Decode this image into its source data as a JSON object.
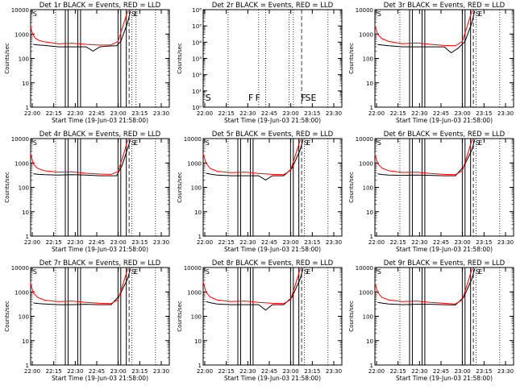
{
  "figure": {
    "xlabel": "Start Time (19-Jun-03 21:58:00)",
    "ylabel": "Counts/sec",
    "x_ticks": [
      "22:00",
      "22:15",
      "22:30",
      "22:45",
      "23:00",
      "23:15",
      "23:30"
    ]
  },
  "chart_data": [
    {
      "type": "line",
      "title": "Det 1r BLACK = Events, RED = LLD",
      "scale": "log",
      "ylim": [
        1,
        10000
      ],
      "xlim_minutes": [
        0,
        100
      ],
      "y_ticks": [
        "1",
        "10",
        "100",
        "1000",
        "10000"
      ],
      "events_marks": [
        [
          2,
          380
        ],
        [
          5,
          360
        ],
        [
          10,
          340
        ],
        [
          20,
          300
        ],
        [
          30,
          300
        ],
        [
          40,
          300
        ],
        [
          45,
          200
        ],
        [
          50,
          300
        ],
        [
          55,
          320
        ],
        [
          62,
          330
        ],
        [
          65,
          500
        ],
        [
          70,
          3000
        ],
        [
          72,
          9000
        ]
      ],
      "lld_marks": [
        [
          0,
          2000
        ],
        [
          1,
          1200
        ],
        [
          3,
          700
        ],
        [
          6,
          550
        ],
        [
          10,
          480
        ],
        [
          20,
          400
        ],
        [
          30,
          420
        ],
        [
          40,
          380
        ],
        [
          50,
          350
        ],
        [
          58,
          360
        ],
        [
          63,
          500
        ],
        [
          67,
          2500
        ],
        [
          70,
          9000
        ]
      ],
      "vlines_solid": [
        25,
        27,
        34,
        36,
        63,
        65,
        69
      ],
      "vlines_dotted": [
        18,
        73,
        76,
        90
      ],
      "vlines_dashed": [
        71
      ],
      "annotations": [
        {
          "text": "S",
          "x": 1
        },
        {
          "text": "S",
          "x": 72
        },
        {
          "text": "E",
          "x": 74
        }
      ]
    },
    {
      "type": "line",
      "title": "Det 2r BLACK = Events, RED = LLD",
      "scale": "log",
      "ylim": [
        1,
        1000000
      ],
      "xlim_minutes": [
        0,
        100
      ],
      "y_ticks": [
        "10⁰",
        "10¹",
        "10²",
        "10³",
        "10⁴",
        "10⁵",
        "10⁶"
      ],
      "events_marks": [],
      "lld_marks": [],
      "vlines_solid": [],
      "vlines_dotted": [
        18,
        40,
        45,
        62,
        65,
        90
      ],
      "vlines_dashed": [
        71
      ],
      "annotations": [
        {
          "text": "S",
          "x": 1
        },
        {
          "text": "F",
          "x": 32
        },
        {
          "text": "F",
          "x": 37
        },
        {
          "text": "F",
          "x": 70
        },
        {
          "text": "S",
          "x": 73
        },
        {
          "text": "E",
          "x": 77
        }
      ]
    },
    {
      "type": "line",
      "title": "Det 3r BLACK = Events, RED = LLD",
      "scale": "log",
      "ylim": [
        1,
        10000
      ],
      "xlim_minutes": [
        0,
        100
      ],
      "y_ticks": [
        "1",
        "10",
        "100",
        "1000",
        "10000"
      ],
      "events_marks": [
        [
          2,
          370
        ],
        [
          6,
          350
        ],
        [
          10,
          330
        ],
        [
          20,
          300
        ],
        [
          30,
          300
        ],
        [
          40,
          300
        ],
        [
          50,
          300
        ],
        [
          55,
          170
        ],
        [
          60,
          260
        ],
        [
          65,
          500
        ],
        [
          70,
          3000
        ],
        [
          72,
          9000
        ]
      ],
      "lld_marks": [
        [
          0,
          2200
        ],
        [
          2,
          1000
        ],
        [
          5,
          650
        ],
        [
          10,
          500
        ],
        [
          20,
          400
        ],
        [
          30,
          430
        ],
        [
          40,
          380
        ],
        [
          50,
          340
        ],
        [
          58,
          330
        ],
        [
          63,
          500
        ],
        [
          67,
          2500
        ],
        [
          70,
          9000
        ]
      ],
      "vlines_solid": [
        25,
        27,
        34,
        36,
        63,
        65,
        69
      ],
      "vlines_dotted": [
        18,
        73,
        90
      ],
      "vlines_dashed": [
        71
      ],
      "annotations": [
        {
          "text": "S",
          "x": 1
        },
        {
          "text": "S",
          "x": 72
        },
        {
          "text": "E",
          "x": 74
        }
      ]
    },
    {
      "type": "line",
      "title": "Det 4r BLACK = Events, RED = LLD",
      "scale": "log",
      "ylim": [
        1,
        10000
      ],
      "xlim_minutes": [
        0,
        100
      ],
      "y_ticks": [
        "1",
        "10",
        "100",
        "1000",
        "10000"
      ],
      "events_marks": [
        [
          2,
          360
        ],
        [
          6,
          340
        ],
        [
          10,
          330
        ],
        [
          20,
          320
        ],
        [
          30,
          330
        ],
        [
          40,
          320
        ],
        [
          50,
          300
        ],
        [
          55,
          300
        ],
        [
          62,
          300
        ],
        [
          66,
          800
        ],
        [
          70,
          4000
        ],
        [
          72,
          9000
        ]
      ],
      "lld_marks": [
        [
          0,
          2500
        ],
        [
          2,
          900
        ],
        [
          5,
          600
        ],
        [
          10,
          480
        ],
        [
          20,
          420
        ],
        [
          30,
          430
        ],
        [
          40,
          380
        ],
        [
          50,
          350
        ],
        [
          58,
          340
        ],
        [
          63,
          450
        ],
        [
          67,
          2200
        ],
        [
          70,
          9000
        ]
      ],
      "vlines_solid": [
        25,
        27,
        34,
        36,
        63,
        65,
        69
      ],
      "vlines_dotted": [
        18,
        73,
        90
      ],
      "vlines_dashed": [
        71
      ],
      "annotations": [
        {
          "text": "S",
          "x": 1
        },
        {
          "text": "S",
          "x": 72
        },
        {
          "text": "E",
          "x": 74
        }
      ]
    },
    {
      "type": "line",
      "title": "Det 5r BLACK = Events, RED = LLD",
      "scale": "log",
      "ylim": [
        1,
        10000
      ],
      "xlim_minutes": [
        0,
        100
      ],
      "y_ticks": [
        "1",
        "10",
        "100",
        "1000",
        "10000"
      ],
      "events_marks": [
        [
          2,
          380
        ],
        [
          6,
          340
        ],
        [
          10,
          320
        ],
        [
          20,
          300
        ],
        [
          30,
          300
        ],
        [
          40,
          300
        ],
        [
          45,
          200
        ],
        [
          50,
          300
        ],
        [
          58,
          300
        ],
        [
          64,
          600
        ],
        [
          70,
          3500
        ],
        [
          72,
          9000
        ]
      ],
      "lld_marks": [
        [
          0,
          2400
        ],
        [
          2,
          1000
        ],
        [
          5,
          600
        ],
        [
          10,
          460
        ],
        [
          20,
          400
        ],
        [
          30,
          420
        ],
        [
          40,
          370
        ],
        [
          50,
          340
        ],
        [
          58,
          330
        ],
        [
          63,
          500
        ],
        [
          67,
          2500
        ],
        [
          70,
          9000
        ]
      ],
      "vlines_solid": [
        25,
        27,
        34,
        36,
        63,
        65,
        69
      ],
      "vlines_dotted": [
        18,
        73,
        90
      ],
      "vlines_dashed": [
        71
      ],
      "annotations": [
        {
          "text": "S",
          "x": 1
        },
        {
          "text": "S",
          "x": 72
        },
        {
          "text": "E",
          "x": 74
        }
      ]
    },
    {
      "type": "line",
      "title": "Det 6r BLACK = Events, RED = LLD",
      "scale": "log",
      "ylim": [
        1,
        10000
      ],
      "xlim_minutes": [
        0,
        100
      ],
      "y_ticks": [
        "1",
        "10",
        "100",
        "1000",
        "10000"
      ],
      "events_marks": [
        [
          2,
          360
        ],
        [
          6,
          330
        ],
        [
          10,
          320
        ],
        [
          20,
          310
        ],
        [
          30,
          320
        ],
        [
          40,
          310
        ],
        [
          50,
          300
        ],
        [
          58,
          300
        ],
        [
          64,
          700
        ],
        [
          70,
          3500
        ],
        [
          72,
          9000
        ]
      ],
      "lld_marks": [
        [
          0,
          2300
        ],
        [
          2,
          950
        ],
        [
          5,
          620
        ],
        [
          10,
          480
        ],
        [
          20,
          410
        ],
        [
          30,
          420
        ],
        [
          40,
          370
        ],
        [
          50,
          340
        ],
        [
          58,
          330
        ],
        [
          63,
          480
        ],
        [
          67,
          2400
        ],
        [
          70,
          9000
        ]
      ],
      "vlines_solid": [
        25,
        27,
        34,
        36,
        63,
        65,
        69
      ],
      "vlines_dotted": [
        18,
        73,
        90
      ],
      "vlines_dashed": [
        71
      ],
      "annotations": [
        {
          "text": "S",
          "x": 1
        },
        {
          "text": "S",
          "x": 72
        },
        {
          "text": "E",
          "x": 74
        }
      ]
    },
    {
      "type": "line",
      "title": "Det 7r BLACK = Events, RED = LLD",
      "scale": "log",
      "ylim": [
        1,
        10000
      ],
      "xlim_minutes": [
        0,
        100
      ],
      "y_ticks": [
        "1",
        "10",
        "100",
        "1000",
        "10000"
      ],
      "events_marks": [
        [
          2,
          350
        ],
        [
          6,
          330
        ],
        [
          10,
          320
        ],
        [
          20,
          300
        ],
        [
          30,
          300
        ],
        [
          40,
          310
        ],
        [
          50,
          300
        ],
        [
          58,
          300
        ],
        [
          64,
          700
        ],
        [
          70,
          3500
        ],
        [
          72,
          9000
        ]
      ],
      "lld_marks": [
        [
          0,
          2200
        ],
        [
          2,
          900
        ],
        [
          5,
          600
        ],
        [
          10,
          460
        ],
        [
          20,
          400
        ],
        [
          30,
          420
        ],
        [
          40,
          370
        ],
        [
          50,
          340
        ],
        [
          58,
          330
        ],
        [
          63,
          480
        ],
        [
          67,
          2400
        ],
        [
          70,
          9000
        ]
      ],
      "vlines_solid": [
        25,
        27,
        34,
        36,
        63,
        65,
        69
      ],
      "vlines_dotted": [
        18,
        73,
        90
      ],
      "vlines_dashed": [
        71
      ],
      "annotations": [
        {
          "text": "S",
          "x": 1
        },
        {
          "text": "S",
          "x": 72
        },
        {
          "text": "E",
          "x": 74
        }
      ]
    },
    {
      "type": "line",
      "title": "Det 8r BLACK = Events, RED = LLD",
      "scale": "log",
      "ylim": [
        1,
        10000
      ],
      "xlim_minutes": [
        0,
        100
      ],
      "y_ticks": [
        "1",
        "10",
        "100",
        "1000",
        "10000"
      ],
      "events_marks": [
        [
          2,
          400
        ],
        [
          6,
          350
        ],
        [
          10,
          320
        ],
        [
          20,
          300
        ],
        [
          30,
          300
        ],
        [
          40,
          300
        ],
        [
          45,
          180
        ],
        [
          50,
          300
        ],
        [
          58,
          300
        ],
        [
          64,
          600
        ],
        [
          70,
          3500
        ],
        [
          72,
          9000
        ]
      ],
      "lld_marks": [
        [
          0,
          2600
        ],
        [
          2,
          1000
        ],
        [
          5,
          620
        ],
        [
          10,
          470
        ],
        [
          20,
          400
        ],
        [
          30,
          420
        ],
        [
          40,
          370
        ],
        [
          50,
          340
        ],
        [
          58,
          330
        ],
        [
          63,
          480
        ],
        [
          67,
          2400
        ],
        [
          70,
          9000
        ]
      ],
      "vlines_solid": [
        25,
        27,
        34,
        36,
        63,
        65,
        69
      ],
      "vlines_dotted": [
        18,
        73,
        90
      ],
      "vlines_dashed": [
        71
      ],
      "annotations": [
        {
          "text": "S",
          "x": 1
        },
        {
          "text": "S",
          "x": 72
        },
        {
          "text": "E",
          "x": 74
        }
      ]
    },
    {
      "type": "line",
      "title": "Det 9r BLACK = Events, RED = LLD",
      "scale": "log",
      "ylim": [
        1,
        10000
      ],
      "xlim_minutes": [
        0,
        100
      ],
      "y_ticks": [
        "1",
        "10",
        "100",
        "1000",
        "10000"
      ],
      "events_marks": [
        [
          2,
          370
        ],
        [
          6,
          340
        ],
        [
          10,
          320
        ],
        [
          20,
          300
        ],
        [
          30,
          310
        ],
        [
          40,
          310
        ],
        [
          50,
          300
        ],
        [
          58,
          290
        ],
        [
          64,
          600
        ],
        [
          70,
          3500
        ],
        [
          72,
          9000
        ]
      ],
      "lld_marks": [
        [
          0,
          2300
        ],
        [
          2,
          950
        ],
        [
          5,
          600
        ],
        [
          10,
          470
        ],
        [
          20,
          400
        ],
        [
          30,
          420
        ],
        [
          40,
          370
        ],
        [
          50,
          340
        ],
        [
          58,
          320
        ],
        [
          63,
          470
        ],
        [
          67,
          2400
        ],
        [
          70,
          9000
        ]
      ],
      "vlines_solid": [
        25,
        27,
        34,
        36,
        63,
        65,
        69
      ],
      "vlines_dotted": [
        18,
        73,
        90
      ],
      "vlines_dashed": [
        71
      ],
      "annotations": [
        {
          "text": "S",
          "x": 1
        },
        {
          "text": "S",
          "x": 72
        },
        {
          "text": "E",
          "x": 74
        }
      ]
    }
  ],
  "colors": {
    "events": "#000000",
    "lld": "#ff0000",
    "background": "#ffffff"
  }
}
